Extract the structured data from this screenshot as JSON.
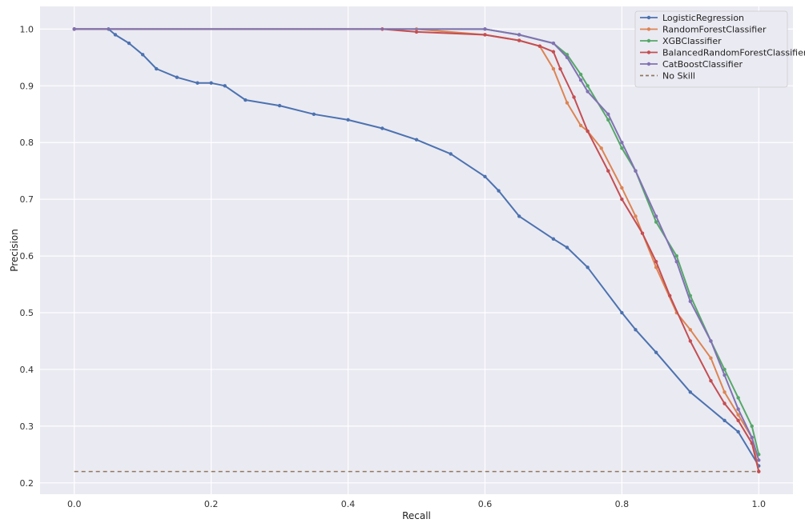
{
  "chart_data": {
    "type": "line",
    "title": "",
    "xlabel": "Recall",
    "ylabel": "Precision",
    "xlim": [
      -0.05,
      1.05
    ],
    "ylim": [
      0.18,
      1.04
    ],
    "x_ticks": [
      "0.0",
      "0.2",
      "0.4",
      "0.6",
      "0.8",
      "1.0"
    ],
    "y_ticks": [
      "0.2",
      "0.3",
      "0.4",
      "0.5",
      "0.6",
      "0.7",
      "0.8",
      "0.9",
      "1.0"
    ],
    "grid": true,
    "legend_position": "top-right",
    "series": [
      {
        "name": "LogisticRegression",
        "color": "#4c72b0",
        "x": [
          0.0,
          0.05,
          0.06,
          0.08,
          0.1,
          0.12,
          0.15,
          0.18,
          0.2,
          0.22,
          0.25,
          0.3,
          0.35,
          0.4,
          0.45,
          0.5,
          0.55,
          0.6,
          0.62,
          0.65,
          0.7,
          0.72,
          0.75,
          0.8,
          0.82,
          0.85,
          0.9,
          0.95,
          0.97,
          1.0
        ],
        "y": [
          1.0,
          1.0,
          0.99,
          0.975,
          0.955,
          0.93,
          0.915,
          0.905,
          0.905,
          0.9,
          0.875,
          0.865,
          0.85,
          0.84,
          0.825,
          0.805,
          0.78,
          0.74,
          0.715,
          0.67,
          0.63,
          0.615,
          0.58,
          0.5,
          0.47,
          0.43,
          0.36,
          0.31,
          0.29,
          0.23
        ]
      },
      {
        "name": "RandomForestClassifier",
        "color": "#dd8452",
        "x": [
          0.0,
          0.5,
          0.6,
          0.65,
          0.68,
          0.7,
          0.72,
          0.74,
          0.75,
          0.77,
          0.8,
          0.82,
          0.85,
          0.88,
          0.9,
          0.93,
          0.95,
          0.97,
          0.99,
          1.0
        ],
        "y": [
          1.0,
          1.0,
          0.99,
          0.98,
          0.97,
          0.93,
          0.87,
          0.83,
          0.82,
          0.79,
          0.72,
          0.67,
          0.58,
          0.5,
          0.47,
          0.42,
          0.36,
          0.32,
          0.28,
          0.22
        ]
      },
      {
        "name": "XGBClassifier",
        "color": "#55a868",
        "x": [
          0.0,
          0.6,
          0.65,
          0.7,
          0.72,
          0.74,
          0.75,
          0.78,
          0.8,
          0.82,
          0.85,
          0.88,
          0.9,
          0.93,
          0.95,
          0.97,
          0.99,
          1.0
        ],
        "y": [
          1.0,
          1.0,
          0.99,
          0.975,
          0.955,
          0.92,
          0.9,
          0.84,
          0.79,
          0.75,
          0.66,
          0.6,
          0.53,
          0.45,
          0.4,
          0.35,
          0.3,
          0.25
        ]
      },
      {
        "name": "BalancedRandomForestClassifier",
        "color": "#c44e52",
        "x": [
          0.0,
          0.45,
          0.5,
          0.6,
          0.65,
          0.68,
          0.7,
          0.71,
          0.73,
          0.75,
          0.78,
          0.8,
          0.83,
          0.85,
          0.87,
          0.9,
          0.93,
          0.95,
          0.97,
          0.99,
          1.0
        ],
        "y": [
          1.0,
          1.0,
          0.995,
          0.99,
          0.98,
          0.97,
          0.96,
          0.93,
          0.88,
          0.82,
          0.75,
          0.7,
          0.64,
          0.59,
          0.53,
          0.45,
          0.38,
          0.34,
          0.31,
          0.27,
          0.22
        ]
      },
      {
        "name": "CatBoostClassifier",
        "color": "#8172b3",
        "x": [
          0.0,
          0.6,
          0.65,
          0.7,
          0.72,
          0.74,
          0.75,
          0.78,
          0.8,
          0.82,
          0.85,
          0.88,
          0.9,
          0.93,
          0.95,
          0.97,
          0.99,
          1.0
        ],
        "y": [
          1.0,
          1.0,
          0.99,
          0.975,
          0.95,
          0.91,
          0.89,
          0.85,
          0.8,
          0.75,
          0.67,
          0.59,
          0.52,
          0.45,
          0.39,
          0.33,
          0.28,
          0.24
        ]
      },
      {
        "name": "No Skill",
        "color": "#937860",
        "dashed": true,
        "x": [
          0.0,
          1.0
        ],
        "y": [
          0.22,
          0.22
        ]
      }
    ]
  }
}
